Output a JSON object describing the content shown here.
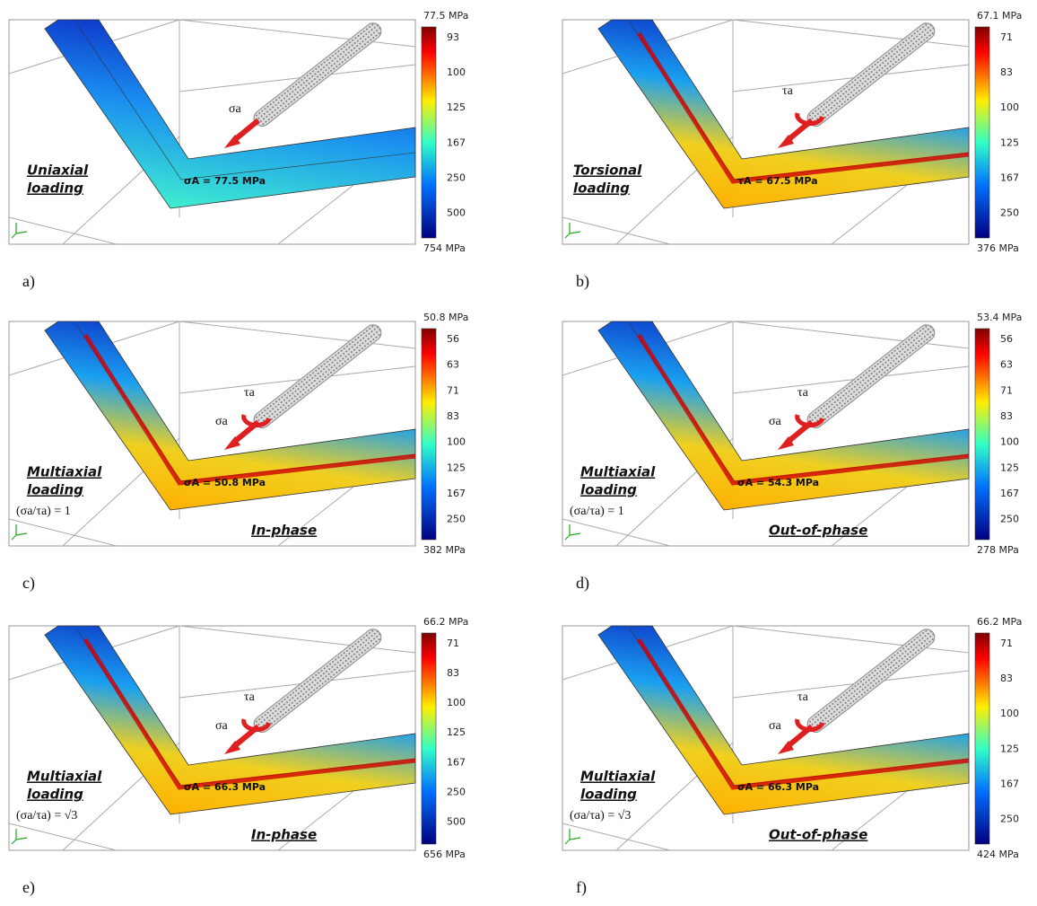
{
  "panels": [
    {
      "label": "a)",
      "loading": [
        "Uniaxial",
        "loading"
      ],
      "ratio": null,
      "phase": null,
      "arrow_labels": [
        "σa"
      ],
      "annotation": "σA = 77.5 MPa",
      "colorbar": {
        "max": "77.5 MPa",
        "ticks": [
          "93",
          "100",
          "125",
          "167",
          "250",
          "500"
        ],
        "min": "754 MPa"
      }
    },
    {
      "label": "b)",
      "loading": [
        "Torsional",
        "loading"
      ],
      "ratio": null,
      "phase": null,
      "arrow_labels": [
        "τa"
      ],
      "annotation": "τA = 67.5 MPa",
      "colorbar": {
        "max": "67.1 MPa",
        "ticks": [
          "71",
          "83",
          "100",
          "125",
          "167",
          "250"
        ],
        "min": "376 MPa"
      }
    },
    {
      "label": "c)",
      "loading": [
        "Multiaxial",
        "loading"
      ],
      "ratio": "(σa/τa) = 1",
      "phase": "In-phase",
      "arrow_labels": [
        "τa",
        "σa"
      ],
      "annotation": "σA = 50.8 MPa",
      "colorbar": {
        "max": "50.8 MPa",
        "ticks": [
          "56",
          "63",
          "71",
          "83",
          "100",
          "125",
          "167",
          "250"
        ],
        "min": "382 MPa"
      }
    },
    {
      "label": "d)",
      "loading": [
        "Multiaxial",
        "loading"
      ],
      "ratio": "(σa/τa) = 1",
      "phase": "Out-of-phase",
      "arrow_labels": [
        "τa",
        "σa"
      ],
      "annotation": "σA = 54.3 MPa",
      "colorbar": {
        "max": "53.4 MPa",
        "ticks": [
          "56",
          "63",
          "71",
          "83",
          "100",
          "125",
          "167",
          "250"
        ],
        "min": "278 MPa"
      }
    },
    {
      "label": "e)",
      "loading": [
        "Multiaxial",
        "loading"
      ],
      "ratio": "(σa/τa) = √3",
      "phase": "In-phase",
      "arrow_labels": [
        "τa",
        "σa"
      ],
      "annotation": "σA = 66.3 MPa",
      "colorbar": {
        "max": "66.2 MPa",
        "ticks": [
          "71",
          "83",
          "100",
          "125",
          "167",
          "250",
          "500"
        ],
        "min": "656 MPa"
      }
    },
    {
      "label": "f)",
      "loading": [
        "Multiaxial",
        "loading"
      ],
      "ratio": "(σa/τa) = √3",
      "phase": "Out-of-phase",
      "arrow_labels": [
        "τa",
        "σa"
      ],
      "annotation": "σA = 66.3 MPa",
      "colorbar": {
        "max": "66.2 MPa",
        "ticks": [
          "71",
          "83",
          "100",
          "125",
          "167",
          "250"
        ],
        "min": "424 MPa"
      }
    }
  ]
}
